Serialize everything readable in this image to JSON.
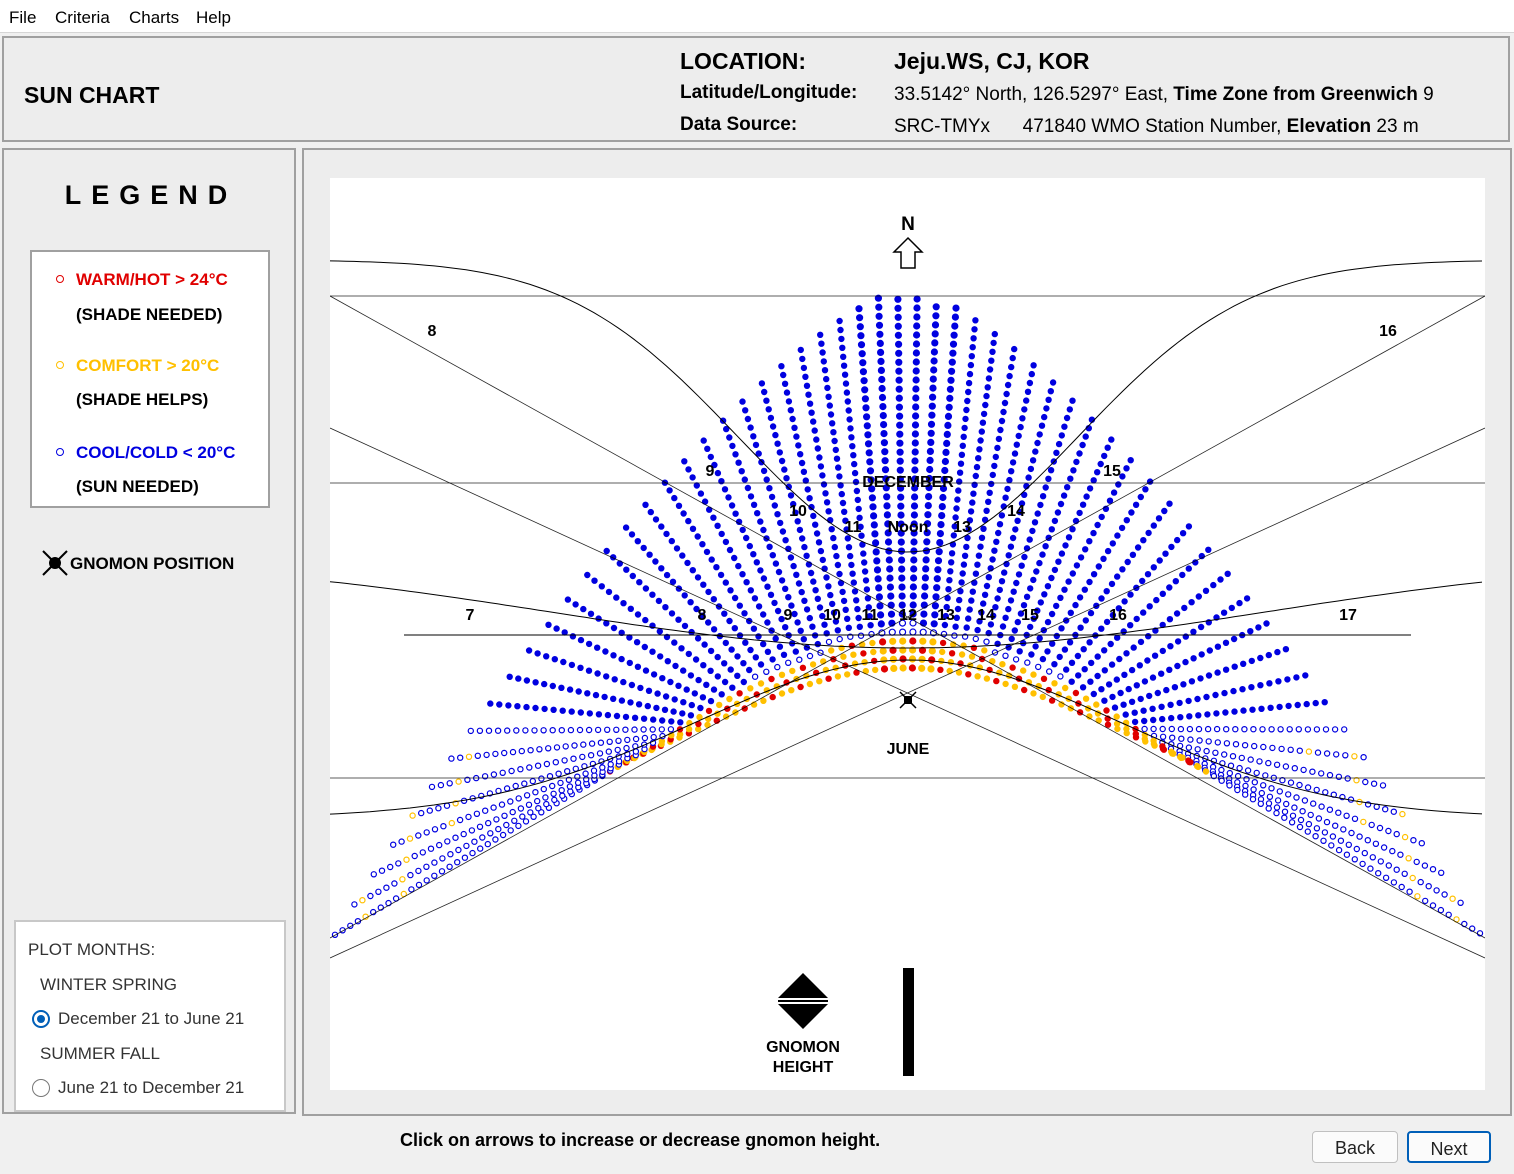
{
  "menu": [
    "File",
    "Criteria",
    "Charts",
    "Help"
  ],
  "header": {
    "title": "SUN CHART",
    "location_label": "LOCATION:",
    "location_value": "Jeju.WS, CJ, KOR",
    "latlon_label": "Latitude/Longitude:",
    "lat": "33.5142° North,",
    "lon": "126.5297° East,",
    "tz_label": "Time Zone from Greenwich",
    "tz_value": "9",
    "source_label": "Data Source:",
    "source": "SRC-TMYx",
    "wmo": "471840 WMO Station Number,",
    "elev_label": "Elevation",
    "elev_value": "23 m"
  },
  "legend": {
    "title": "LEGEND",
    "warm": "WARM/HOT  > 24°C",
    "warm_note": "(SHADE NEEDED)",
    "comfort": "COMFORT  > 20°C",
    "comfort_note": "(SHADE HELPS)",
    "cool": "COOL/COLD  < 20°C",
    "cool_note": "(SUN NEEDED)",
    "gnomon": "GNOMON POSITION",
    "colors": {
      "warm": "#e00000",
      "comfort": "#ffc000",
      "cool": "#0000e0"
    }
  },
  "plot_months": {
    "label": "PLOT MONTHS:",
    "group1": "WINTER SPRING",
    "option1": "December 21 to June 21",
    "group2": "SUMMER FALL",
    "option2": "June 21 to December 21",
    "selected": "December 21 to June 21"
  },
  "chart": {
    "north": "N",
    "december": "DECEMBER",
    "june": "JUNE",
    "noon": "Noon",
    "december_hours": [
      "8",
      "9",
      "10",
      "11",
      "13",
      "14",
      "15",
      "16"
    ],
    "equinox_hours": [
      "7",
      "8",
      "9",
      "10",
      "11",
      "12",
      "13",
      "14",
      "15",
      "16",
      "17"
    ],
    "gnomon_height": [
      "GNOMON",
      "HEIGHT"
    ]
  },
  "footer": {
    "instruction": "Click on arrows to increase or decrease gnomon height.",
    "back": "Back",
    "next": "Next"
  }
}
